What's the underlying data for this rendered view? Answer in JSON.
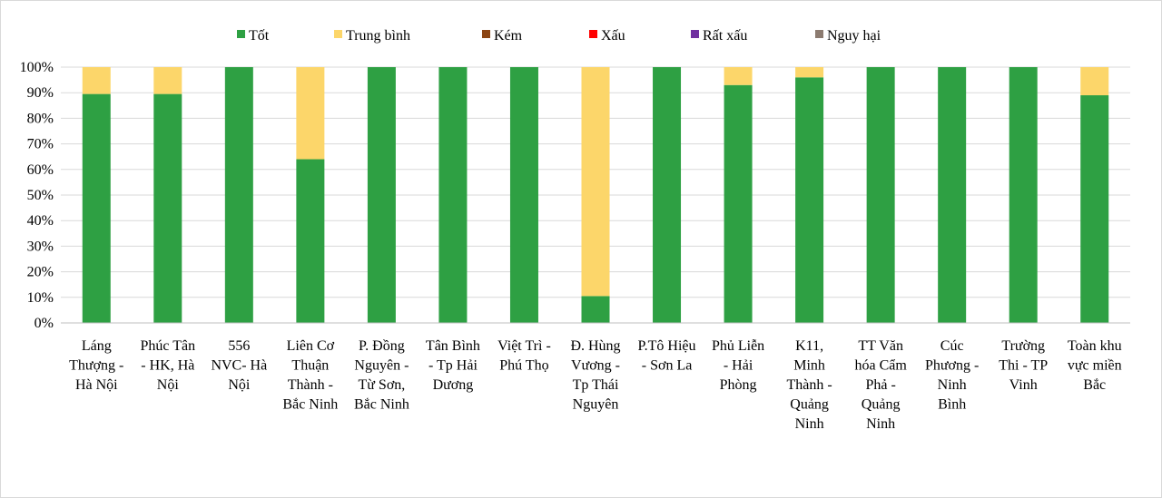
{
  "chart_data": {
    "type": "bar",
    "stacked": true,
    "percent_axis": true,
    "ylim": [
      0,
      100
    ],
    "yticks": [
      "0%",
      "10%",
      "20%",
      "30%",
      "40%",
      "50%",
      "60%",
      "70%",
      "80%",
      "90%",
      "100%"
    ],
    "grid": true,
    "legend_position": "top",
    "categories": [
      [
        "Láng",
        "Thượng -",
        "Hà Nội"
      ],
      [
        "Phúc Tân",
        "- HK, Hà",
        "Nội"
      ],
      [
        "556",
        "NVC- Hà",
        "Nội"
      ],
      [
        "Liên Cơ",
        "Thuận",
        "Thành -",
        "Bắc Ninh"
      ],
      [
        "P. Đồng",
        "Nguyên -",
        "Từ Sơn,",
        "Bắc Ninh"
      ],
      [
        "Tân Bình",
        "- Tp Hải",
        "Dương"
      ],
      [
        "Việt Trì  -",
        "Phú Thọ"
      ],
      [
        "Đ. Hùng",
        "Vương -",
        "Tp Thái",
        "Nguyên"
      ],
      [
        "P.Tô Hiệu",
        "- Sơn La"
      ],
      [
        "Phủ Liễn",
        "- Hải",
        "Phòng"
      ],
      [
        "K11,",
        "Minh",
        "Thành -",
        "Quảng",
        "Ninh"
      ],
      [
        "TT Văn",
        "hóa Cẩm",
        "Phả -",
        "Quảng",
        "Ninh"
      ],
      [
        "Cúc",
        "Phương -",
        "Ninh",
        "Bình"
      ],
      [
        "Trường",
        "Thi - TP",
        "Vinh"
      ],
      [
        "Toàn khu",
        "vực miền",
        "Bắc"
      ]
    ],
    "series": [
      {
        "name": "Tốt",
        "color": "#2ea043",
        "values": [
          89.5,
          89.5,
          100,
          64,
          100,
          100,
          100,
          10.5,
          100,
          93,
          96,
          100,
          100,
          100,
          89
        ]
      },
      {
        "name": "Trung bình",
        "color": "#fcd66a",
        "values": [
          10.5,
          10.5,
          0,
          36,
          0,
          0,
          0,
          89.5,
          0,
          7,
          4,
          0,
          0,
          0,
          11
        ]
      },
      {
        "name": "Kém",
        "color": "#8b4513",
        "values": [
          0,
          0,
          0,
          0,
          0,
          0,
          0,
          0,
          0,
          0,
          0,
          0,
          0,
          0,
          0
        ]
      },
      {
        "name": "Xấu",
        "color": "#ff0000",
        "values": [
          0,
          0,
          0,
          0,
          0,
          0,
          0,
          0,
          0,
          0,
          0,
          0,
          0,
          0,
          0
        ]
      },
      {
        "name": "Rất xấu",
        "color": "#7030a0",
        "values": [
          0,
          0,
          0,
          0,
          0,
          0,
          0,
          0,
          0,
          0,
          0,
          0,
          0,
          0,
          0
        ]
      },
      {
        "name": "Nguy hại",
        "color": "#8c7b70",
        "values": [
          0,
          0,
          0,
          0,
          0,
          0,
          0,
          0,
          0,
          0,
          0,
          0,
          0,
          0,
          0
        ]
      }
    ]
  }
}
